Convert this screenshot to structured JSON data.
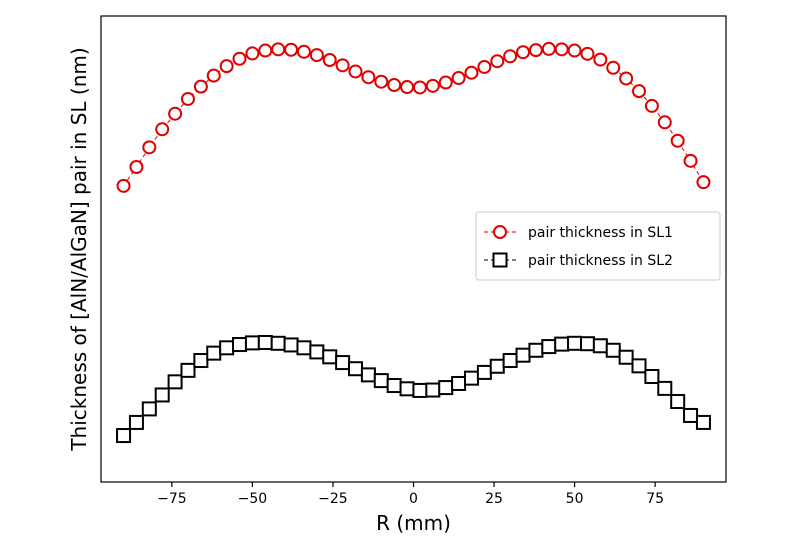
{
  "chart_data": {
    "type": "scatter",
    "title": "",
    "xlabel": "R (mm)",
    "ylabel": "Thickness of [AlN/AlGaN] pair in SL (nm)",
    "xlim": [
      -97,
      97
    ],
    "ylim": [
      0,
      100
    ],
    "y_ticks_shown": false,
    "x_ticks": [
      -75,
      -50,
      -25,
      0,
      25,
      50,
      75
    ],
    "x_tick_labels": [
      "−75",
      "−50",
      "−25",
      "0",
      "25",
      "50",
      "75"
    ],
    "grid": false,
    "legend_position": "center-right",
    "x": [
      -90,
      -86,
      -82,
      -78,
      -74,
      -70,
      -66,
      -62,
      -58,
      -54,
      -50,
      -46,
      -42,
      -38,
      -34,
      -30,
      -26,
      -22,
      -18,
      -14,
      -10,
      -6,
      -2,
      2,
      6,
      10,
      14,
      18,
      22,
      26,
      30,
      34,
      38,
      42,
      46,
      50,
      54,
      58,
      62,
      66,
      70,
      74,
      78,
      82,
      86,
      90
    ],
    "series": [
      {
        "name": "pair thickness in SL1",
        "color": "#e00000",
        "marker": "circle",
        "values": [
          65.4,
          70.0,
          74.8,
          79.2,
          83.0,
          86.6,
          89.6,
          92.3,
          94.6,
          96.4,
          97.7,
          98.4,
          98.7,
          98.6,
          98.1,
          97.3,
          96.1,
          94.8,
          93.3,
          91.9,
          90.8,
          90.0,
          89.5,
          89.4,
          89.8,
          90.6,
          91.7,
          93.0,
          94.4,
          95.8,
          97.0,
          98.0,
          98.5,
          98.8,
          98.7,
          98.4,
          97.6,
          96.2,
          94.2,
          91.6,
          88.5,
          84.9,
          80.9,
          76.4,
          71.5,
          66.3
        ]
      },
      {
        "name": "pair thickness in SL2",
        "color": "#000000",
        "marker": "square",
        "values": [
          4.5,
          7.7,
          11.0,
          14.4,
          17.6,
          20.4,
          22.8,
          24.6,
          25.9,
          26.7,
          27.1,
          27.2,
          27.0,
          26.6,
          25.9,
          24.9,
          23.7,
          22.3,
          20.8,
          19.3,
          17.9,
          16.7,
          15.9,
          15.5,
          15.6,
          16.2,
          17.2,
          18.5,
          19.9,
          21.4,
          22.8,
          24.1,
          25.3,
          26.2,
          26.8,
          27.0,
          26.9,
          26.4,
          25.3,
          23.6,
          21.5,
          18.9,
          16.0,
          12.8,
          9.4,
          7.7
        ]
      }
    ]
  }
}
